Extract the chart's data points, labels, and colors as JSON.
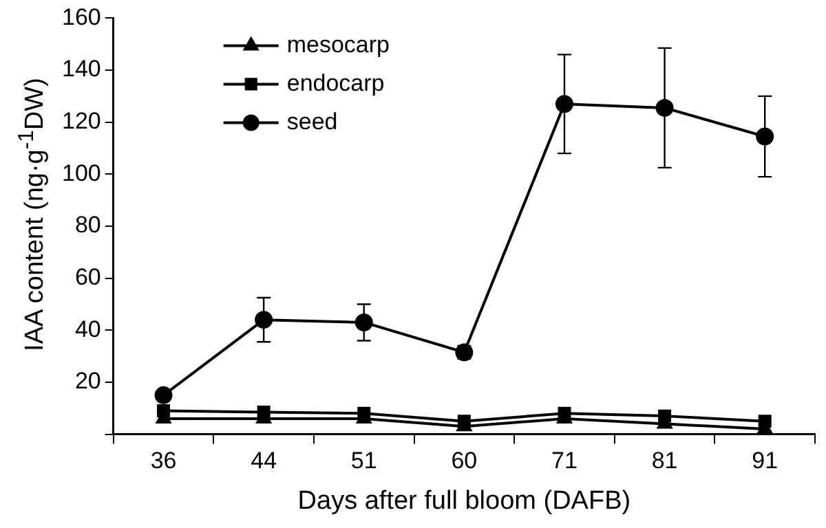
{
  "chart_data": {
    "type": "line",
    "xlabel": "Days after full bloom (DAFB)",
    "ylabel": "IAA content (ng·g$^{-1}$DW)",
    "categories": [
      "36",
      "44",
      "51",
      "60",
      "71",
      "81",
      "91"
    ],
    "series": [
      {
        "name": "mesocarp",
        "color": "#000000",
        "marker": "triangle",
        "values": [
          6,
          6,
          6,
          3,
          6,
          4,
          2
        ]
      },
      {
        "name": "endocarp",
        "color": "#000000",
        "marker": "square",
        "values": [
          9,
          8.5,
          8,
          5,
          8,
          7,
          5
        ]
      },
      {
        "name": "seed",
        "color": "#000000",
        "marker": "circle",
        "values": [
          15,
          44,
          43,
          31.5,
          127,
          125.5,
          114.5
        ],
        "errors": [
          1,
          8.5,
          7,
          2.5,
          19,
          23,
          15.5
        ]
      }
    ],
    "ylim": [
      0,
      160
    ],
    "yticks": [
      {
        "value": 0,
        "label": null
      },
      20,
      40,
      60,
      80,
      100,
      120,
      140,
      160
    ],
    "grid": false,
    "legend": "top left",
    "line_style": "solid"
  }
}
